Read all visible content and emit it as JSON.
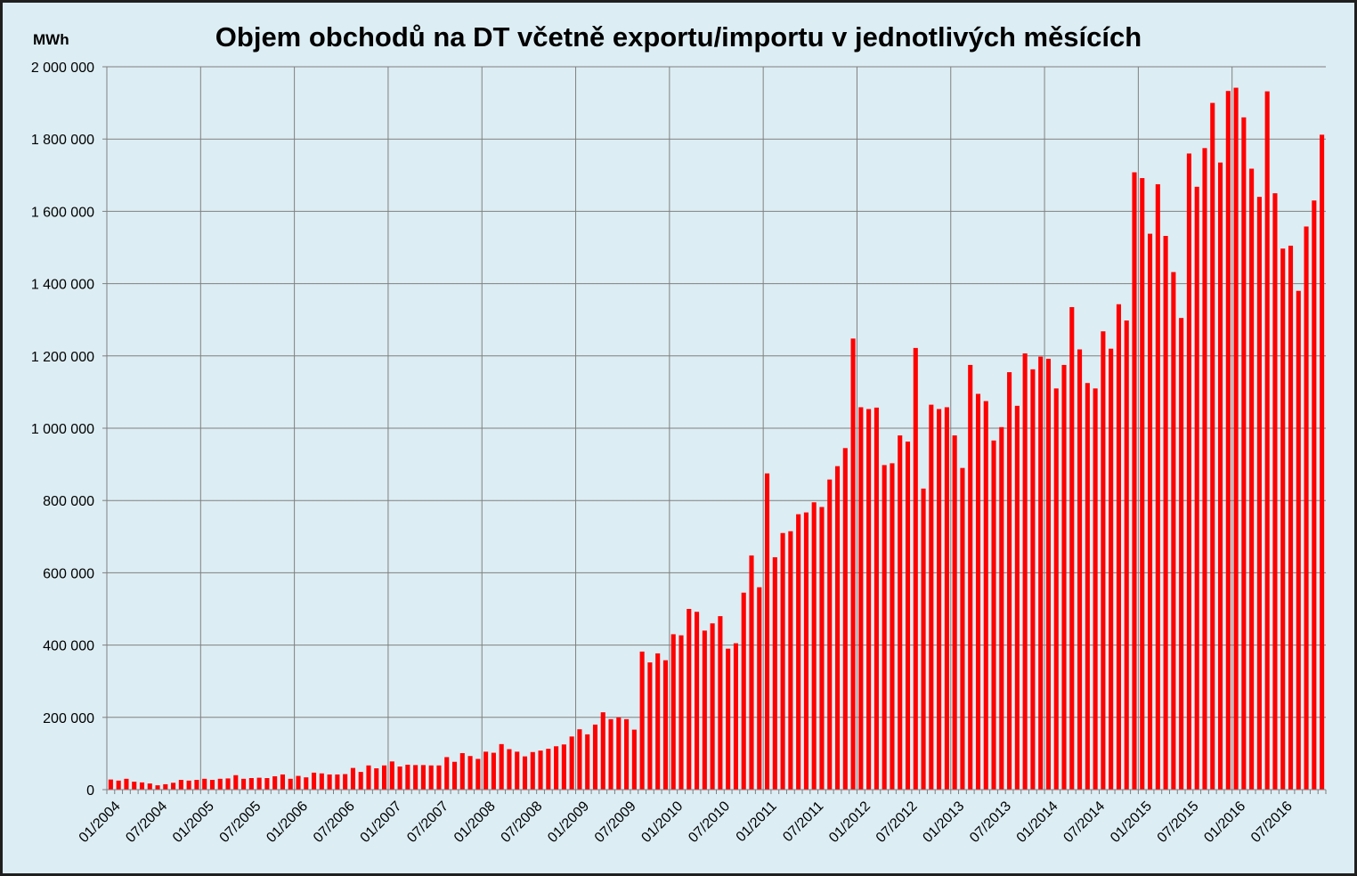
{
  "colors": {
    "bar": "#ff0000",
    "background": "#dcedf3",
    "grid": "#808080",
    "axis": "#808080"
  },
  "chart_data": {
    "type": "bar",
    "title": "Objem obchodů na DT včetně exportu/importu v jednotlivých měsících",
    "ylabel": "MWh",
    "xlabel": "",
    "ylim": [
      0,
      2000000
    ],
    "yticks": [
      0,
      200000,
      400000,
      600000,
      800000,
      1000000,
      1200000,
      1400000,
      1600000,
      1800000,
      2000000
    ],
    "ytick_labels": [
      "0",
      "200 000",
      "400 000",
      "600 000",
      "800 000",
      "1 000 000",
      "1 200 000",
      "1 400 000",
      "1 600 000",
      "1 800 000",
      "2 000 000"
    ],
    "xtick_labels": [
      "01/2004",
      "07/2004",
      "01/2005",
      "07/2005",
      "01/2006",
      "07/2006",
      "01/2007",
      "07/2007",
      "01/2008",
      "07/2008",
      "01/2009",
      "07/2009",
      "01/2010",
      "07/2010",
      "01/2011",
      "07/2011",
      "01/2012",
      "07/2012",
      "01/2013",
      "07/2013",
      "01/2014",
      "07/2014",
      "01/2015",
      "07/2015",
      "01/2016",
      "07/2016"
    ],
    "grid": {
      "horizontal": true,
      "vertical": "yearly"
    },
    "legend": "none",
    "series": [
      {
        "values": [
          28000,
          25000,
          30000,
          22000,
          20000,
          17000,
          12000,
          15000,
          19000,
          27000,
          25000,
          27000,
          30000,
          27000,
          30000,
          31000,
          40000,
          30000,
          32000,
          33000,
          32000,
          37000,
          42000,
          30000,
          38000,
          34000,
          47000,
          45000,
          42000,
          42000,
          43000,
          60000,
          49000,
          67000,
          59000,
          67000,
          78000,
          64000,
          69000,
          68000,
          68000,
          67000,
          67000,
          90000,
          77000,
          101000,
          93000,
          85000,
          105000,
          102000,
          126000,
          112000,
          105000,
          92000,
          104000,
          108000,
          113000,
          120000,
          125000,
          147000,
          167000,
          153000,
          180000,
          214000,
          195000,
          200000,
          195000,
          166000,
          382000,
          352000,
          377000,
          358000,
          430000,
          427000,
          500000,
          492000,
          440000,
          460000,
          480000,
          390000,
          405000,
          545000,
          648000,
          560000,
          875000,
          643000,
          710000,
          715000,
          762000,
          767000,
          795000,
          782000,
          858000,
          895000,
          945000,
          1248000,
          1058000,
          1053000,
          1057000,
          898000,
          903000,
          980000,
          963000,
          1222000,
          833000,
          1065000,
          1053000,
          1058000,
          980000,
          890000,
          1175000,
          1095000,
          1075000,
          966000,
          1003000,
          1155000,
          1062000,
          1207000,
          1163000,
          1198000,
          1192000,
          1110000,
          1175000,
          1335000,
          1218000,
          1125000,
          1110000,
          1268000,
          1220000,
          1343000,
          1298000,
          1708000,
          1692000,
          1538000,
          1675000,
          1532000,
          1432000,
          1305000,
          1760000,
          1668000,
          1775000,
          1900000,
          1735000,
          1933000,
          1942000,
          1860000,
          1718000,
          1640000,
          1932000,
          1650000,
          1497000,
          1505000,
          1380000,
          1558000,
          1630000,
          1812000
        ]
      }
    ]
  }
}
